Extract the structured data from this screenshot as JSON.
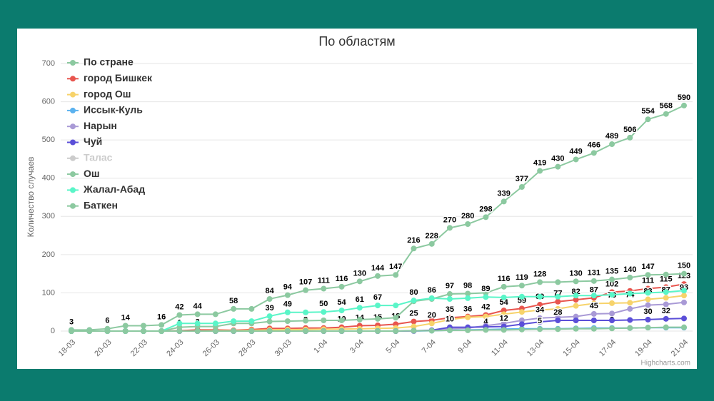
{
  "chart_data": {
    "type": "line",
    "title": "По областям",
    "y_label": "Количество случаев",
    "credits": "Highcharts.com",
    "categories": [
      "18-03",
      null,
      "20-03",
      null,
      "22-03",
      null,
      "24-03",
      null,
      "26-03",
      null,
      "28-03",
      null,
      "30-03",
      null,
      "1-04",
      null,
      "3-04",
      null,
      "5-04",
      null,
      "7-04",
      null,
      "9-04",
      null,
      "11-04",
      null,
      "13-04",
      null,
      "15-04",
      null,
      "17-04",
      null,
      "19-04",
      null,
      "21-04"
    ],
    "ylim": [
      0,
      700
    ],
    "yticks": [
      0,
      100,
      200,
      300,
      400,
      500,
      600,
      700
    ],
    "grid": true,
    "legend": "top-left",
    "series": [
      {
        "name": "По стране",
        "color": "#8cc9a0",
        "values": [
          3,
          3,
          6,
          14,
          14,
          16,
          42,
          44,
          44,
          58,
          58,
          84,
          94,
          107,
          111,
          116,
          130,
          144,
          147,
          216,
          228,
          270,
          280,
          298,
          339,
          377,
          419,
          430,
          449,
          466,
          489,
          506,
          554,
          568,
          590
        ],
        "value_labels": [
          "3",
          null,
          "6",
          "14",
          null,
          "16",
          "42",
          "44",
          null,
          "58",
          null,
          "84",
          "94",
          "107",
          "111",
          "116",
          "130",
          "144",
          "147",
          "216",
          "228",
          "270",
          "280",
          "298",
          "339",
          "377",
          "419",
          "430",
          "449",
          "466",
          "489",
          "506",
          "554",
          "568",
          "590"
        ]
      },
      {
        "name": "город Бишкек",
        "color": "#e8554e",
        "values": [
          0,
          0,
          0,
          0,
          0,
          0,
          1,
          3,
          3,
          2,
          4,
          7,
          7,
          8,
          8,
          10,
          14,
          15,
          18,
          25,
          28,
          35,
          38,
          42,
          54,
          59,
          69,
          77,
          82,
          87,
          102,
          105,
          111,
          115,
          123
        ],
        "value_labels": [
          null,
          null,
          null,
          null,
          null,
          null,
          "1",
          "3",
          null,
          "2",
          null,
          "7",
          null,
          "8",
          null,
          "10",
          "14",
          "15",
          "18",
          "25",
          null,
          "35",
          null,
          "42",
          "54",
          "59",
          "69",
          "77",
          "82",
          "87",
          "102",
          null,
          "111",
          "115",
          "123"
        ]
      },
      {
        "name": "город Ош",
        "color": "#f7d36b",
        "values": [
          0,
          0,
          0,
          0,
          0,
          0,
          0,
          0,
          1,
          1,
          2,
          3,
          4,
          4,
          5,
          5,
          6,
          7,
          8,
          12,
          20,
          30,
          36,
          38,
          44,
          50,
          55,
          58,
          66,
          72,
          73,
          74,
          83,
          87,
          93
        ],
        "value_labels": [
          null,
          null,
          null,
          null,
          null,
          null,
          null,
          null,
          null,
          null,
          null,
          null,
          null,
          null,
          null,
          null,
          null,
          null,
          null,
          null,
          "20",
          null,
          "36",
          null,
          null,
          null,
          null,
          null,
          null,
          null,
          "73",
          "74",
          "83",
          "87",
          "93"
        ]
      },
      {
        "name": "Иссык-Куль",
        "color": "#5bb2ef",
        "values": [
          0,
          0,
          0,
          0,
          0,
          0,
          0,
          0,
          0,
          0,
          0,
          0,
          0,
          0,
          0,
          0,
          0,
          0,
          0,
          0,
          1,
          2,
          3,
          4,
          5,
          6,
          6,
          6,
          7,
          8,
          8,
          8,
          9,
          9,
          9
        ],
        "value_labels": [
          null,
          null,
          null,
          null,
          null,
          null,
          null,
          null,
          null,
          null,
          null,
          null,
          null,
          null,
          null,
          null,
          null,
          null,
          null,
          null,
          null,
          null,
          null,
          "4",
          null,
          "6",
          null,
          null,
          null,
          null,
          "8",
          null,
          null,
          null,
          null
        ]
      },
      {
        "name": "Нарын",
        "color": "#a99ad6",
        "values": [
          0,
          0,
          0,
          0,
          0,
          0,
          0,
          0,
          0,
          0,
          0,
          0,
          0,
          0,
          0,
          0,
          0,
          0,
          0,
          0,
          2,
          6,
          8,
          14,
          20,
          28,
          34,
          36,
          38,
          45,
          46,
          58,
          68,
          70,
          75
        ],
        "value_labels": [
          null,
          null,
          null,
          null,
          null,
          null,
          null,
          null,
          null,
          null,
          null,
          null,
          null,
          null,
          null,
          null,
          null,
          null,
          null,
          null,
          null,
          null,
          null,
          null,
          null,
          null,
          "34",
          null,
          null,
          "45",
          null,
          null,
          null,
          null,
          null
        ]
      },
      {
        "name": "Чуй",
        "color": "#5b4fd8",
        "values": [
          0,
          0,
          0,
          0,
          0,
          0,
          0,
          0,
          0,
          0,
          0,
          0,
          0,
          0,
          0,
          0,
          0,
          0,
          0,
          1,
          2,
          10,
          10,
          11,
          12,
          18,
          24,
          28,
          28,
          28,
          28,
          29,
          30,
          32,
          33
        ],
        "value_labels": [
          null,
          null,
          null,
          null,
          null,
          null,
          null,
          null,
          null,
          null,
          null,
          null,
          null,
          null,
          null,
          null,
          null,
          null,
          null,
          null,
          null,
          "10",
          null,
          null,
          "12",
          null,
          null,
          "28",
          null,
          null,
          null,
          null,
          "30",
          "32",
          null
        ]
      },
      {
        "name": "Талас",
        "color": "#cccccc",
        "visible": false
      },
      {
        "name": "Ош",
        "color": "#8cc9a0",
        "values": [
          0,
          0,
          0,
          0,
          0,
          0,
          10,
          12,
          12,
          20,
          20,
          25,
          26,
          27,
          28,
          28,
          30,
          32,
          35,
          78,
          84,
          97,
          98,
          100,
          116,
          119,
          128,
          128,
          130,
          131,
          135,
          140,
          147,
          148,
          150
        ],
        "value_labels": [
          null,
          null,
          null,
          null,
          null,
          null,
          null,
          null,
          null,
          null,
          null,
          null,
          null,
          null,
          null,
          null,
          null,
          null,
          null,
          null,
          null,
          "97",
          "98",
          null,
          "116",
          "119",
          "128",
          null,
          "130",
          "131",
          "135",
          "140",
          "147",
          null,
          "150"
        ]
      },
      {
        "name": "Жалал-Абад",
        "color": "#5af5c8",
        "values": [
          0,
          0,
          0,
          0,
          0,
          0,
          20,
          20,
          20,
          26,
          26,
          39,
          49,
          49,
          50,
          54,
          61,
          67,
          67,
          80,
          86,
          84,
          86,
          89,
          88,
          90,
          90,
          90,
          93,
          93,
          95,
          98,
          100,
          102,
          106
        ],
        "value_labels": [
          null,
          null,
          null,
          null,
          null,
          null,
          null,
          null,
          null,
          null,
          null,
          "39",
          "49",
          null,
          "50",
          "54",
          "61",
          "67",
          null,
          "80",
          "86",
          null,
          null,
          "89",
          null,
          null,
          null,
          null,
          null,
          null,
          null,
          null,
          null,
          null,
          null
        ]
      },
      {
        "name": "Баткен",
        "color": "#8cc9a0",
        "values": [
          0,
          0,
          0,
          0,
          0,
          0,
          0,
          0,
          0,
          0,
          0,
          0,
          0,
          0,
          0,
          0,
          0,
          0,
          0,
          1,
          1,
          2,
          2,
          3,
          3,
          4,
          5,
          5,
          6,
          6,
          7,
          8,
          9,
          10,
          10
        ],
        "value_labels": [
          null,
          null,
          null,
          null,
          null,
          null,
          null,
          null,
          null,
          null,
          null,
          null,
          null,
          null,
          null,
          null,
          null,
          null,
          null,
          null,
          null,
          null,
          null,
          null,
          null,
          null,
          "5",
          null,
          null,
          null,
          null,
          null,
          null,
          null,
          null
        ]
      }
    ]
  }
}
